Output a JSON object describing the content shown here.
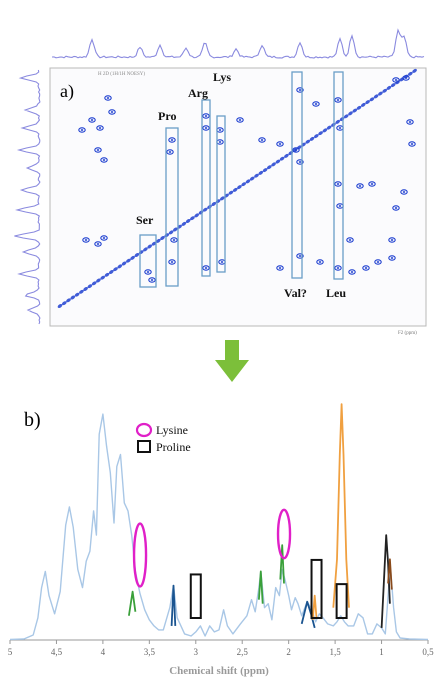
{
  "chart_data": [
    {
      "type": "scatter",
      "panel_label": "a)",
      "header_text": "H 2D  (1H/1H NOESY)",
      "axis_unit_label": "F2 (ppm)",
      "box_labels": [
        "Ser",
        "Pro",
        "Arg",
        "Lys",
        "Val?",
        "Leu"
      ],
      "diagonal": true,
      "projection_traces": [
        "top",
        "left"
      ]
    },
    {
      "type": "line",
      "panel_label": "b)",
      "xlabel": "Chemical shift (ppm)",
      "x_ticks": [
        "5",
        "4,5",
        "4",
        "3,5",
        "3",
        "2,5",
        "2",
        "1,5",
        "1",
        "0,5"
      ],
      "xlim": [
        5,
        0.5
      ],
      "grid": false,
      "legend": {
        "placement": "top-center",
        "entries": [
          {
            "label": "Lysine",
            "marker": "ellipse",
            "color": "#e020c8"
          },
          {
            "label": "Proline",
            "marker": "rectangle",
            "color": "#111111"
          }
        ]
      },
      "series": [
        {
          "color": "#a9c7e6",
          "points": [
            [
              5.0,
              0.3
            ],
            [
              4.85,
              0.5
            ],
            [
              4.75,
              2.5
            ],
            [
              4.7,
              11
            ],
            [
              4.66,
              26
            ],
            [
              4.62,
              34
            ],
            [
              4.58,
              22
            ],
            [
              4.52,
              13
            ],
            [
              4.46,
              24
            ],
            [
              4.4,
              57
            ],
            [
              4.36,
              66
            ],
            [
              4.32,
              56
            ],
            [
              4.27,
              35
            ],
            [
              4.22,
              26
            ],
            [
              4.18,
              39
            ],
            [
              4.14,
              44
            ],
            [
              4.1,
              64
            ],
            [
              4.07,
              52
            ],
            [
              4.04,
              102
            ],
            [
              4.0,
              112
            ],
            [
              3.96,
              96
            ],
            [
              3.92,
              83
            ],
            [
              3.88,
              58
            ],
            [
              3.85,
              86
            ],
            [
              3.81,
              92
            ],
            [
              3.77,
              68
            ],
            [
              3.73,
              64
            ],
            [
              3.69,
              52
            ],
            [
              3.65,
              34
            ],
            [
              3.6,
              23
            ],
            [
              3.55,
              15
            ],
            [
              3.5,
              10
            ],
            [
              3.45,
              7
            ],
            [
              3.4,
              5
            ],
            [
              3.35,
              5
            ],
            [
              3.28,
              16
            ],
            [
              3.24,
              27
            ],
            [
              3.2,
              11
            ],
            [
              3.12,
              3
            ],
            [
              3.05,
              2
            ],
            [
              3.0,
              4
            ],
            [
              2.95,
              7
            ],
            [
              2.9,
              2
            ],
            [
              2.85,
              7
            ],
            [
              2.8,
              4
            ],
            [
              2.75,
              5
            ],
            [
              2.7,
              15
            ],
            [
              2.66,
              7
            ],
            [
              2.6,
              3
            ],
            [
              2.52,
              8
            ],
            [
              2.45,
              12
            ],
            [
              2.4,
              20
            ],
            [
              2.36,
              14
            ],
            [
              2.32,
              26
            ],
            [
              2.3,
              34
            ],
            [
              2.26,
              16
            ],
            [
              2.22,
              18
            ],
            [
              2.18,
              10
            ],
            [
              2.14,
              26
            ],
            [
              2.1,
              22
            ],
            [
              2.07,
              35
            ],
            [
              2.04,
              30
            ],
            [
              2.0,
              22
            ],
            [
              1.97,
              15
            ],
            [
              1.93,
              21
            ],
            [
              1.9,
              18
            ],
            [
              1.86,
              12
            ],
            [
              1.8,
              19
            ],
            [
              1.75,
              15
            ],
            [
              1.71,
              9
            ],
            [
              1.67,
              13
            ],
            [
              1.63,
              11
            ],
            [
              1.58,
              8
            ],
            [
              1.52,
              7
            ],
            [
              1.48,
              9
            ],
            [
              1.44,
              12
            ],
            [
              1.4,
              9
            ],
            [
              1.36,
              7
            ],
            [
              1.3,
              7
            ],
            [
              1.25,
              13
            ],
            [
              1.2,
              11
            ],
            [
              1.15,
              3
            ],
            [
              1.1,
              3
            ],
            [
              1.05,
              8
            ],
            [
              1.0,
              6
            ],
            [
              0.96,
              3
            ],
            [
              0.92,
              28
            ],
            [
              0.9,
              34
            ],
            [
              0.87,
              16
            ],
            [
              0.84,
              4
            ],
            [
              0.8,
              1
            ],
            [
              0.7,
              0.5
            ],
            [
              0.5,
              0.3
            ]
          ]
        },
        {
          "color": "#f0a040",
          "points": [
            [
              1.52,
              16
            ],
            [
              1.48,
              40
            ],
            [
              1.45,
              92
            ],
            [
              1.43,
              117
            ],
            [
              1.41,
              92
            ],
            [
              1.38,
              40
            ],
            [
              1.35,
              16
            ]
          ]
        },
        {
          "color": "#1a5490",
          "points": [
            [
              3.26,
              7
            ],
            [
              3.24,
              27
            ],
            [
              3.22,
              7
            ]
          ]
        },
        {
          "color": "#1a5490",
          "points": [
            [
              1.86,
              8
            ],
            [
              1.8,
              19
            ],
            [
              1.76,
              13
            ],
            [
              1.72,
              6
            ]
          ]
        },
        {
          "color": "#222222",
          "points": [
            [
              1.0,
              6
            ],
            [
              0.97,
              33
            ],
            [
              0.95,
              52
            ],
            [
              0.93,
              38
            ],
            [
              0.91,
              18
            ]
          ]
        },
        {
          "color": "#8a4a1a",
          "points": [
            [
              0.93,
              28
            ],
            [
              0.91,
              40
            ],
            [
              0.89,
              25
            ]
          ]
        },
        {
          "color": "#3aa03a",
          "points": [
            [
              3.72,
              12
            ],
            [
              3.68,
              24
            ],
            [
              3.65,
              14
            ]
          ]
        },
        {
          "color": "#3aa03a",
          "points": [
            [
              2.32,
              20
            ],
            [
              2.3,
              34
            ],
            [
              2.28,
              18
            ]
          ]
        },
        {
          "color": "#3aa03a",
          "points": [
            [
              2.09,
              30
            ],
            [
              2.07,
              47
            ],
            [
              2.05,
              28
            ]
          ]
        },
        {
          "color": "#f0a040",
          "points": [
            [
              1.74,
              10
            ],
            [
              1.72,
              22
            ],
            [
              1.7,
              11
            ]
          ]
        }
      ],
      "annotations": [
        {
          "kind": "lysine",
          "center_ppm": 3.6,
          "height_frac": 0.26
        },
        {
          "kind": "lysine",
          "center_ppm": 2.05,
          "height_frac": 0.2
        },
        {
          "kind": "proline",
          "center_ppm": 3.0,
          "height_frac": 0.18
        },
        {
          "kind": "proline",
          "center_ppm": 1.7,
          "height_frac": 0.24
        },
        {
          "kind": "proline",
          "center_ppm": 1.43,
          "height_frac": 0.14
        }
      ]
    }
  ],
  "arrow": {
    "color": "#7cbf3a"
  }
}
